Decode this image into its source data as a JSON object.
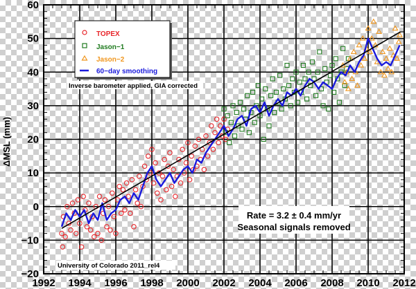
{
  "chart_data": {
    "type": "scatter",
    "xlim": [
      1992,
      2012
    ],
    "ylim": [
      -20,
      60
    ],
    "xticks": [
      "1992",
      "1994",
      "1996",
      "1998",
      "2000",
      "2002",
      "2004",
      "2006",
      "2008",
      "2010",
      "2012"
    ],
    "yticks": [
      "-20",
      "-10",
      "0",
      "10",
      "20",
      "30",
      "40",
      "50",
      "60"
    ],
    "ylabel": "ΔMSL (mm)",
    "xlabel": "",
    "grid": true,
    "legend_placement": "top-left",
    "legend": [
      {
        "name": "TOPEX",
        "marker": "circle",
        "color": "#e8262b"
      },
      {
        "name": "Jason−1",
        "marker": "square",
        "color": "#1e7a1e"
      },
      {
        "name": "Jason−2",
        "marker": "triangle",
        "color": "#f0961e"
      },
      {
        "name": "60−day smoothing",
        "marker": "line",
        "color": "#1a1adc"
      }
    ],
    "annotations": {
      "corrections": "Inverse barometer applied, GIA corrected",
      "rate": "Rate = 3.2 ± 0.4 mm/yr",
      "seasonal": "Seasonal signals removed",
      "credit": "University of Colorado 2011_rel4"
    },
    "trend": {
      "rate_mm_per_yr": 3.2,
      "points": [
        [
          1993.0,
          -6.5
        ],
        [
          2011.8,
          52
        ]
      ],
      "color": "#000000"
    },
    "series": [
      {
        "name": "TOPEX",
        "points": [
          [
            1993.0,
            -8
          ],
          [
            1993.05,
            -12
          ],
          [
            1993.1,
            -3
          ],
          [
            1993.2,
            -9
          ],
          [
            1993.3,
            0
          ],
          [
            1993.4,
            -5
          ],
          [
            1993.5,
            -7
          ],
          [
            1993.6,
            1
          ],
          [
            1993.7,
            -2
          ],
          [
            1993.8,
            -8
          ],
          [
            1993.9,
            2
          ],
          [
            1994.0,
            -5
          ],
          [
            1994.1,
            -12
          ],
          [
            1994.2,
            3
          ],
          [
            1994.3,
            -1
          ],
          [
            1994.4,
            -6
          ],
          [
            1994.5,
            1
          ],
          [
            1994.6,
            -7
          ],
          [
            1994.7,
            -3
          ],
          [
            1994.8,
            -9
          ],
          [
            1994.9,
            0
          ],
          [
            1995.0,
            -8
          ],
          [
            1995.1,
            3
          ],
          [
            1995.2,
            -10
          ],
          [
            1995.3,
            -2
          ],
          [
            1995.4,
            2
          ],
          [
            1995.5,
            -6
          ],
          [
            1995.6,
            0
          ],
          [
            1995.7,
            -7
          ],
          [
            1995.8,
            4
          ],
          [
            1995.9,
            -3
          ],
          [
            1996.0,
            -8
          ],
          [
            1996.1,
            2
          ],
          [
            1996.2,
            6
          ],
          [
            1996.3,
            -2
          ],
          [
            1996.4,
            5
          ],
          [
            1996.5,
            -1
          ],
          [
            1996.6,
            7
          ],
          [
            1996.7,
            3
          ],
          [
            1996.8,
            -2
          ],
          [
            1996.9,
            8
          ],
          [
            1997.0,
            -6
          ],
          [
            1997.1,
            5
          ],
          [
            1997.2,
            1
          ],
          [
            1997.3,
            9
          ],
          [
            1997.4,
            0
          ],
          [
            1997.5,
            6
          ],
          [
            1997.6,
            12
          ],
          [
            1997.7,
            8
          ],
          [
            1997.8,
            15
          ],
          [
            1997.9,
            10
          ],
          [
            1998.0,
            17
          ],
          [
            1998.1,
            7
          ],
          [
            1998.2,
            13
          ],
          [
            1998.3,
            4
          ],
          [
            1998.4,
            10
          ],
          [
            1998.5,
            2
          ],
          [
            1998.6,
            9
          ],
          [
            1998.7,
            14
          ],
          [
            1998.8,
            5
          ],
          [
            1998.9,
            12
          ],
          [
            1999.0,
            16
          ],
          [
            1999.1,
            6
          ],
          [
            1999.2,
            11
          ],
          [
            1999.3,
            3
          ],
          [
            1999.4,
            9
          ],
          [
            1999.5,
            14
          ],
          [
            1999.6,
            7
          ],
          [
            1999.7,
            17
          ],
          [
            1999.8,
            10
          ],
          [
            1999.9,
            13
          ],
          [
            2000.0,
            19
          ],
          [
            2000.1,
            8
          ],
          [
            2000.2,
            15
          ],
          [
            2000.3,
            11
          ],
          [
            2000.4,
            18
          ],
          [
            2000.5,
            12
          ],
          [
            2000.6,
            20
          ],
          [
            2000.7,
            14
          ],
          [
            2000.8,
            17
          ],
          [
            2000.9,
            11
          ],
          [
            2001.0,
            21
          ],
          [
            2001.1,
            15
          ],
          [
            2001.2,
            19
          ],
          [
            2001.3,
            24
          ],
          [
            2001.4,
            17
          ],
          [
            2001.5,
            22
          ],
          [
            2001.6,
            26
          ],
          [
            2001.7,
            19
          ],
          [
            2001.8,
            24
          ],
          [
            2001.9,
            21
          ],
          [
            2002.0,
            26
          ],
          [
            2002.1,
            20
          ],
          [
            2002.2,
            23
          ]
        ]
      },
      {
        "name": "Jason−1",
        "points": [
          [
            2002.0,
            29
          ],
          [
            2002.1,
            22
          ],
          [
            2002.2,
            27
          ],
          [
            2002.3,
            19
          ],
          [
            2002.4,
            25
          ],
          [
            2002.5,
            30
          ],
          [
            2002.6,
            21
          ],
          [
            2002.7,
            28
          ],
          [
            2002.8,
            24
          ],
          [
            2002.9,
            31
          ],
          [
            2003.0,
            23
          ],
          [
            2003.1,
            29
          ],
          [
            2003.2,
            26
          ],
          [
            2003.3,
            33
          ],
          [
            2003.4,
            22
          ],
          [
            2003.5,
            28
          ],
          [
            2003.6,
            34
          ],
          [
            2003.7,
            25
          ],
          [
            2003.8,
            30
          ],
          [
            2003.9,
            36
          ],
          [
            2004.0,
            27
          ],
          [
            2004.1,
            32
          ],
          [
            2004.2,
            20
          ],
          [
            2004.3,
            35
          ],
          [
            2004.4,
            29
          ],
          [
            2004.5,
            24
          ],
          [
            2004.6,
            33
          ],
          [
            2004.7,
            38
          ],
          [
            2004.8,
            28
          ],
          [
            2004.9,
            34
          ],
          [
            2005.0,
            31
          ],
          [
            2005.1,
            39
          ],
          [
            2005.2,
            29
          ],
          [
            2005.3,
            35
          ],
          [
            2005.4,
            32
          ],
          [
            2005.5,
            42
          ],
          [
            2005.6,
            36
          ],
          [
            2005.7,
            30
          ],
          [
            2005.8,
            38
          ],
          [
            2005.9,
            34
          ],
          [
            2006.0,
            40
          ],
          [
            2006.1,
            31
          ],
          [
            2006.2,
            37
          ],
          [
            2006.3,
            34
          ],
          [
            2006.4,
            42
          ],
          [
            2006.5,
            38
          ],
          [
            2006.6,
            32
          ],
          [
            2006.7,
            40
          ],
          [
            2006.8,
            36
          ],
          [
            2006.9,
            43
          ],
          [
            2007.0,
            38
          ],
          [
            2007.1,
            33
          ],
          [
            2007.2,
            40
          ],
          [
            2007.3,
            46
          ],
          [
            2007.4,
            35
          ],
          [
            2007.5,
            30
          ],
          [
            2007.6,
            41
          ],
          [
            2007.7,
            37
          ],
          [
            2007.8,
            29
          ],
          [
            2007.9,
            39
          ],
          [
            2008.0,
            42
          ],
          [
            2008.1,
            34
          ],
          [
            2008.2,
            44
          ],
          [
            2008.3,
            38
          ],
          [
            2008.4,
            31
          ],
          [
            2008.5,
            40
          ],
          [
            2008.6,
            47
          ],
          [
            2008.7,
            36
          ],
          [
            2008.8,
            41
          ],
          [
            2008.9,
            44
          ]
        ]
      },
      {
        "name": "Jason−2",
        "points": [
          [
            2008.6,
            42
          ],
          [
            2008.7,
            37
          ],
          [
            2008.8,
            40
          ],
          [
            2008.9,
            35
          ],
          [
            2009.0,
            44
          ],
          [
            2009.1,
            38
          ],
          [
            2009.2,
            46
          ],
          [
            2009.3,
            40
          ],
          [
            2009.4,
            36
          ],
          [
            2009.5,
            48
          ],
          [
            2009.6,
            42
          ],
          [
            2009.7,
            50
          ],
          [
            2009.8,
            44
          ],
          [
            2009.9,
            47
          ],
          [
            2010.0,
            53
          ],
          [
            2010.1,
            46
          ],
          [
            2010.2,
            50
          ],
          [
            2010.3,
            55
          ],
          [
            2010.4,
            48
          ],
          [
            2010.5,
            43
          ],
          [
            2010.6,
            52
          ],
          [
            2010.7,
            40
          ],
          [
            2010.8,
            46
          ],
          [
            2010.9,
            39
          ],
          [
            2011.0,
            44
          ],
          [
            2011.1,
            41
          ],
          [
            2011.2,
            47
          ],
          [
            2011.3,
            40
          ],
          [
            2011.4,
            45
          ],
          [
            2011.5,
            53
          ],
          [
            2011.6,
            44
          ],
          [
            2011.7,
            49
          ],
          [
            2011.75,
            51
          ]
        ]
      },
      {
        "name": "60−day smoothing",
        "points": [
          [
            1993.0,
            -6
          ],
          [
            1993.25,
            -2
          ],
          [
            1993.5,
            -4
          ],
          [
            1993.75,
            -1
          ],
          [
            1994.0,
            -3
          ],
          [
            1994.25,
            -1
          ],
          [
            1994.5,
            -5
          ],
          [
            1994.75,
            -2
          ],
          [
            1995.0,
            -4
          ],
          [
            1995.25,
            1
          ],
          [
            1995.5,
            -4
          ],
          [
            1995.75,
            -2
          ],
          [
            1996.0,
            -1
          ],
          [
            1996.25,
            2
          ],
          [
            1996.5,
            3
          ],
          [
            1996.75,
            1
          ],
          [
            1997.0,
            4
          ],
          [
            1997.25,
            2
          ],
          [
            1997.5,
            6
          ],
          [
            1997.75,
            10
          ],
          [
            1998.0,
            12
          ],
          [
            1998.25,
            8
          ],
          [
            1998.5,
            6
          ],
          [
            1998.75,
            8
          ],
          [
            1999.0,
            10
          ],
          [
            1999.25,
            7
          ],
          [
            1999.5,
            9
          ],
          [
            1999.75,
            11
          ],
          [
            2000.0,
            12
          ],
          [
            2000.25,
            10
          ],
          [
            2000.5,
            14
          ],
          [
            2000.75,
            13
          ],
          [
            2001.0,
            16
          ],
          [
            2001.25,
            18
          ],
          [
            2001.5,
            20
          ],
          [
            2001.75,
            22
          ],
          [
            2002.0,
            24
          ],
          [
            2002.25,
            21
          ],
          [
            2002.5,
            23
          ],
          [
            2002.75,
            26
          ],
          [
            2003.0,
            27
          ],
          [
            2003.25,
            24
          ],
          [
            2003.5,
            29
          ],
          [
            2003.75,
            30
          ],
          [
            2004.0,
            28
          ],
          [
            2004.25,
            31
          ],
          [
            2004.5,
            27
          ],
          [
            2004.75,
            30
          ],
          [
            2005.0,
            32
          ],
          [
            2005.25,
            30
          ],
          [
            2005.5,
            34
          ],
          [
            2005.75,
            33
          ],
          [
            2006.0,
            35
          ],
          [
            2006.25,
            33
          ],
          [
            2006.5,
            36
          ],
          [
            2006.75,
            38
          ],
          [
            2007.0,
            37
          ],
          [
            2007.25,
            35
          ],
          [
            2007.5,
            37
          ],
          [
            2007.75,
            36
          ],
          [
            2008.0,
            35
          ],
          [
            2008.25,
            38
          ],
          [
            2008.5,
            40
          ],
          [
            2008.75,
            39
          ],
          [
            2009.0,
            42
          ],
          [
            2009.25,
            40
          ],
          [
            2009.5,
            43
          ],
          [
            2009.75,
            45
          ],
          [
            2010.0,
            50
          ],
          [
            2010.25,
            47
          ],
          [
            2010.5,
            44
          ],
          [
            2010.75,
            42
          ],
          [
            2011.0,
            43
          ],
          [
            2011.25,
            42
          ],
          [
            2011.5,
            45
          ],
          [
            2011.75,
            48
          ]
        ]
      }
    ]
  }
}
